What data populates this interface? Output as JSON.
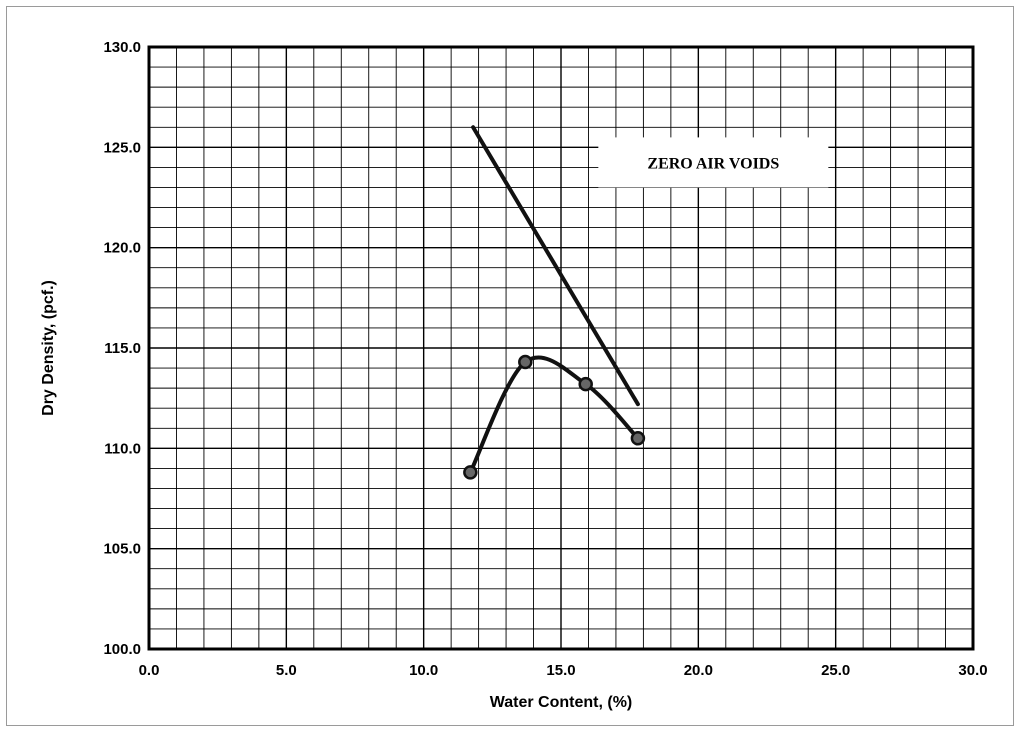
{
  "chart_data": {
    "type": "scatter",
    "title": "",
    "xlabel": "Water Content, (%)",
    "ylabel": "Dry Density, (pcf.)",
    "xlim": [
      0,
      30
    ],
    "ylim": [
      100,
      130
    ],
    "x_ticks": [
      "0.0",
      "5.0",
      "10.0",
      "15.0",
      "20.0",
      "25.0",
      "30.0"
    ],
    "y_ticks": [
      "100.0",
      "105.0",
      "110.0",
      "115.0",
      "120.0",
      "125.0",
      "130.0"
    ],
    "grid": true,
    "series": [
      {
        "kind": "compaction-curve",
        "x": [
          11.7,
          13.7,
          15.9,
          17.8
        ],
        "y": [
          108.8,
          114.3,
          113.2,
          110.5
        ]
      },
      {
        "kind": "zero-air-voids-line",
        "x": [
          11.8,
          17.8
        ],
        "y": [
          126.0,
          112.2
        ]
      }
    ],
    "annotations": [
      {
        "text": "ZERO AIR VOIDS",
        "x": 20.0,
        "y": 124.0
      }
    ]
  }
}
